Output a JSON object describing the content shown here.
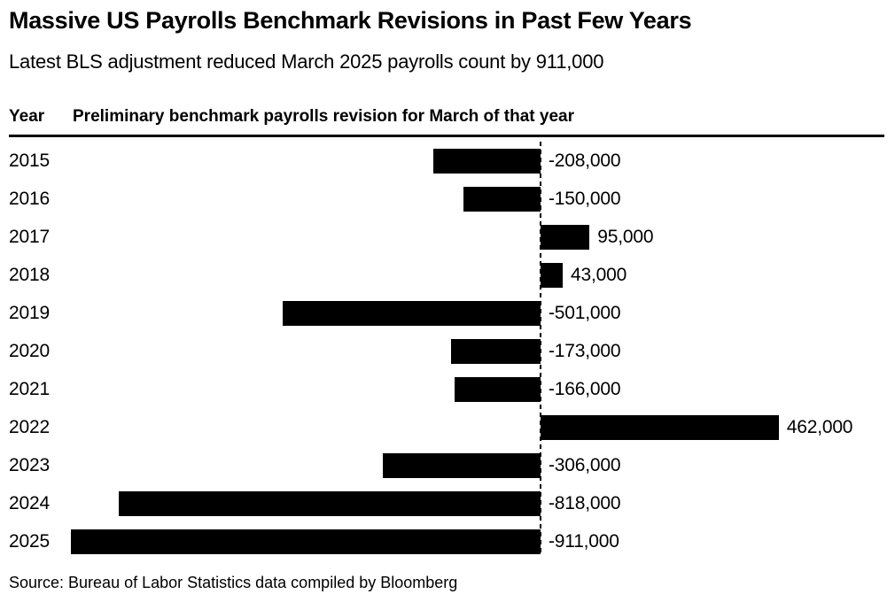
{
  "header": {
    "title": "Massive US Payrolls Benchmark Revisions in Past Few Years",
    "subtitle": "Latest BLS adjustment reduced March 2025 payrolls count by 911,000"
  },
  "table_header": {
    "year_label": "Year",
    "value_label": "Preliminary benchmark payrolls revision for March of that year"
  },
  "chart_data": {
    "type": "bar",
    "orientation": "horizontal",
    "title": "Massive US Payrolls Benchmark Revisions in Past Few Years",
    "subtitle": "Latest BLS adjustment reduced March 2025 payrolls count by 911,000",
    "ylabel": "Year",
    "xlabel": "Preliminary benchmark payrolls revision for March of that year",
    "categories": [
      "2015",
      "2016",
      "2017",
      "2018",
      "2019",
      "2020",
      "2021",
      "2022",
      "2023",
      "2024",
      "2025"
    ],
    "values": [
      -208000,
      -150000,
      95000,
      43000,
      -501000,
      -173000,
      -166000,
      462000,
      -306000,
      -818000,
      -911000
    ],
    "value_labels": [
      "-208,000",
      "-150,000",
      "95,000",
      "43,000",
      "-501,000",
      "-173,000",
      "-166,000",
      "462,000",
      "-306,000",
      "-818,000",
      "-911,000"
    ],
    "xlim": [
      -911000,
      462000
    ],
    "zero_line": true,
    "grid": false,
    "legend": false,
    "bar_color": "#000000",
    "background_color": "#ffffff",
    "text_color": "#000000"
  },
  "source": {
    "text": "Source: Bureau of Labor Statistics data compiled by Bloomberg"
  }
}
